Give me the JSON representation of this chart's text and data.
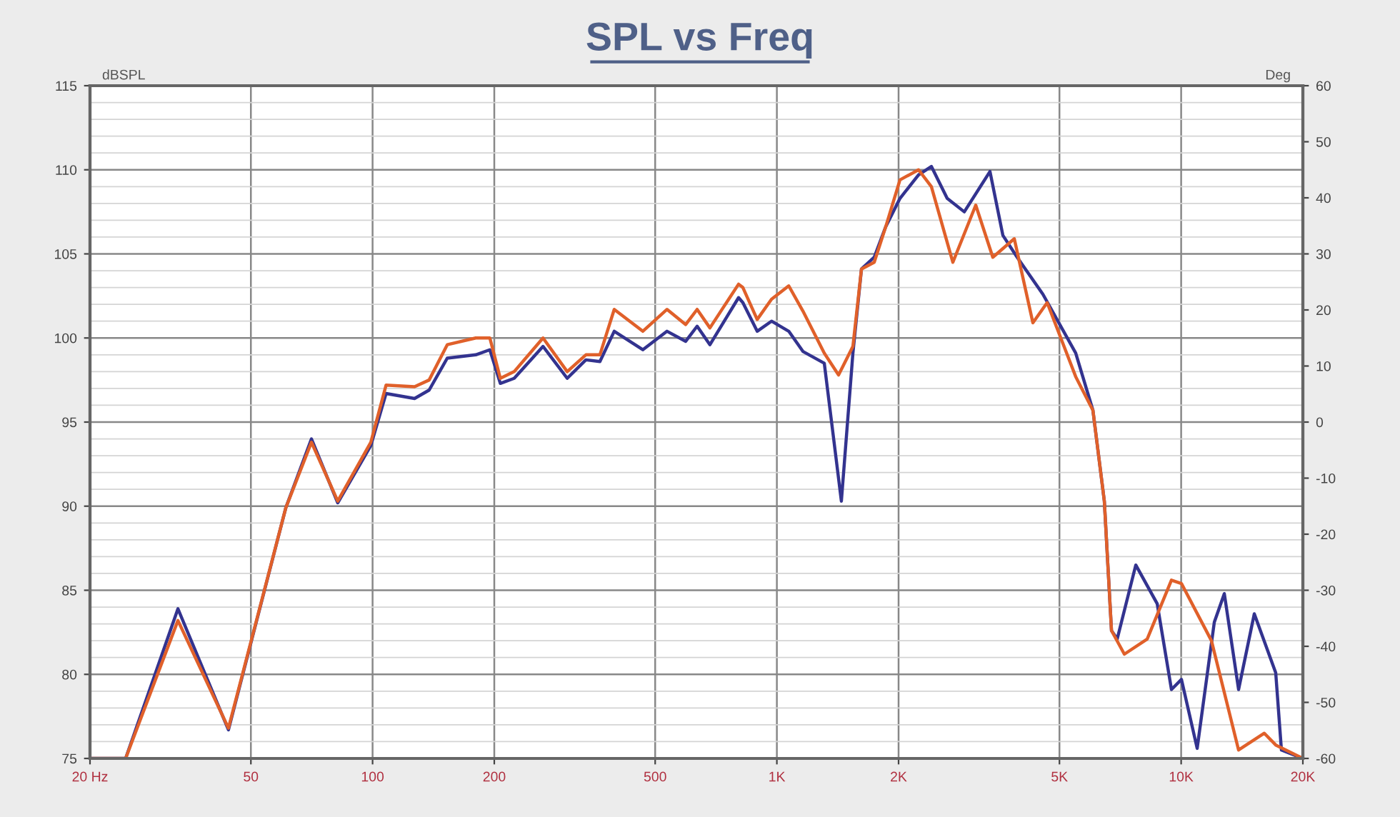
{
  "chart_data": {
    "type": "line",
    "title": "SPL vs Freq",
    "ylabel": "dBSPL",
    "y2label": "Deg",
    "log": "x",
    "grid": true,
    "legend": false,
    "line_style": "solid",
    "marker": "none",
    "xlim": [
      20,
      20000
    ],
    "xticks": [
      {
        "value": 20,
        "label": "20 Hz"
      },
      50,
      100,
      200,
      500,
      {
        "value": 1000,
        "label": "1K"
      },
      {
        "value": 2000,
        "label": "2K"
      },
      {
        "value": 5000,
        "label": "5K"
      },
      {
        "value": 10000,
        "label": "10K"
      },
      {
        "value": 20000,
        "label": "20K"
      }
    ],
    "ylim": [
      75,
      115
    ],
    "yticks": [
      75,
      80,
      85,
      90,
      95,
      100,
      105,
      110,
      115
    ],
    "y2lim": [
      -60,
      60
    ],
    "y2ticks": [
      -60,
      -50,
      -40,
      -30,
      -20,
      -10,
      0,
      10,
      20,
      30,
      40,
      50,
      60
    ],
    "series": [
      {
        "color": "#33338f",
        "x": [
          20,
          24.5,
          33,
          44,
          61,
          70.6,
          82,
          99,
          108,
          127,
          138,
          153,
          180,
          195,
          207,
          224,
          264,
          303,
          337,
          365,
          396,
          466,
          535,
          595,
          635,
          683,
          804,
          824,
          894,
          970,
          1070,
          1160,
          1310,
          1444,
          1542,
          1619,
          1741,
          1858,
          2016,
          2241,
          2411,
          2638,
          2908,
          3366,
          3623,
          3930,
          4550,
          5485,
          6050,
          6456,
          6725,
          6947,
          7723,
          8725,
          9462,
          10016,
          10955,
          12078,
          12787,
          13869,
          15168,
          17135,
          17702,
          20000
        ],
        "values": [
          75,
          75,
          83.9,
          76.7,
          89.9,
          94,
          90.2,
          93.6,
          96.7,
          96.4,
          96.9,
          98.8,
          99,
          99.3,
          97.3,
          97.6,
          99.5,
          97.6,
          98.7,
          98.6,
          100.4,
          99.3,
          100.4,
          99.8,
          100.7,
          99.6,
          102.4,
          102.1,
          100.4,
          101,
          100.4,
          99.2,
          98.5,
          90.3,
          99.1,
          104.1,
          104.8,
          106.6,
          108.3,
          109.7,
          110.2,
          108.3,
          107.5,
          109.9,
          106.1,
          104.8,
          102.6,
          99.1,
          95.7,
          90.3,
          82.6,
          82.1,
          86.5,
          84.2,
          79.1,
          79.7,
          75.6,
          83.1,
          84.8,
          79.1,
          83.6,
          80.1,
          75.5,
          75
        ]
      },
      {
        "color": "#e0602a",
        "x": [
          20,
          24.5,
          33,
          44,
          61,
          70.6,
          82,
          99,
          108,
          127,
          138,
          153,
          180,
          195,
          207,
          224,
          264,
          303,
          337,
          365,
          396,
          466,
          535,
          595,
          635,
          683,
          804,
          824,
          894,
          970,
          1070,
          1160,
          1310,
          1421,
          1542,
          1619,
          1741,
          1858,
          2016,
          2241,
          2411,
          2725,
          3104,
          3421,
          3866,
          4298,
          4662,
          5485,
          6050,
          6456,
          6725,
          7236,
          8241,
          9462,
          10016,
          11883,
          13869,
          16057,
          17135,
          20000
        ],
        "values": [
          75,
          75,
          83.2,
          76.8,
          89.9,
          93.8,
          90.3,
          93.8,
          97.2,
          97.1,
          97.5,
          99.6,
          100,
          100,
          97.6,
          98,
          100,
          98,
          99,
          99,
          101.7,
          100.4,
          101.7,
          100.8,
          101.7,
          100.6,
          103.2,
          103,
          101.1,
          102.3,
          103.1,
          101.6,
          99.1,
          97.8,
          99.5,
          104.1,
          104.5,
          106.6,
          109.4,
          110,
          109,
          104.5,
          107.9,
          104.8,
          105.9,
          100.9,
          102.1,
          97.7,
          95.7,
          90.3,
          82.6,
          81.2,
          82.1,
          85.6,
          85.4,
          82,
          75.5,
          76.5,
          75.8,
          75
        ]
      }
    ]
  }
}
